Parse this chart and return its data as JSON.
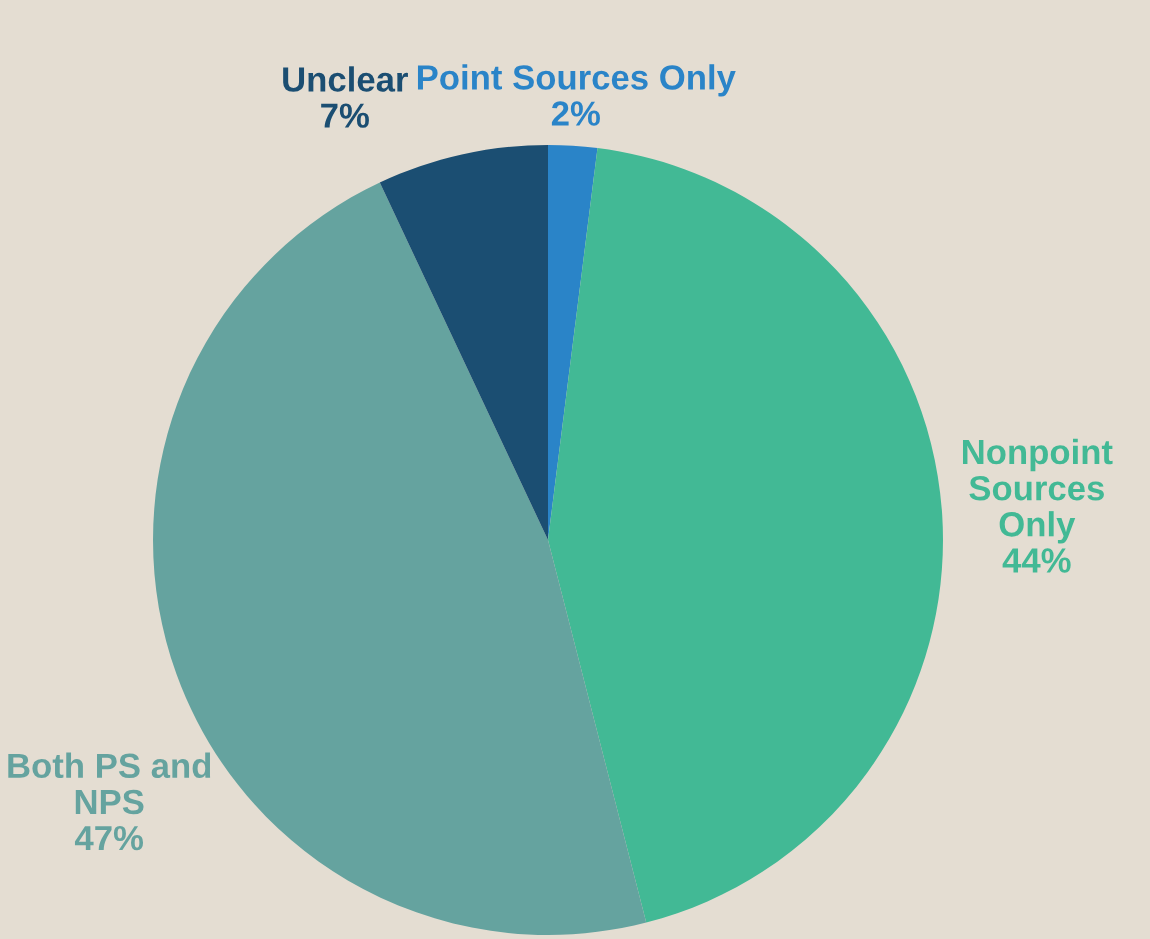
{
  "chart_data": {
    "type": "pie",
    "categories": [
      "Point Sources Only",
      "Nonpoint\nSources\nOnly",
      "Both PS and\nNPS",
      "Unclear"
    ],
    "values": [
      2,
      44,
      47,
      7
    ],
    "value_labels": [
      "2%",
      "44%",
      "47%",
      "7%"
    ],
    "colors": [
      "#2a84c8",
      "#42b995",
      "#65a39f",
      "#1b4e72"
    ],
    "legend": false
  }
}
